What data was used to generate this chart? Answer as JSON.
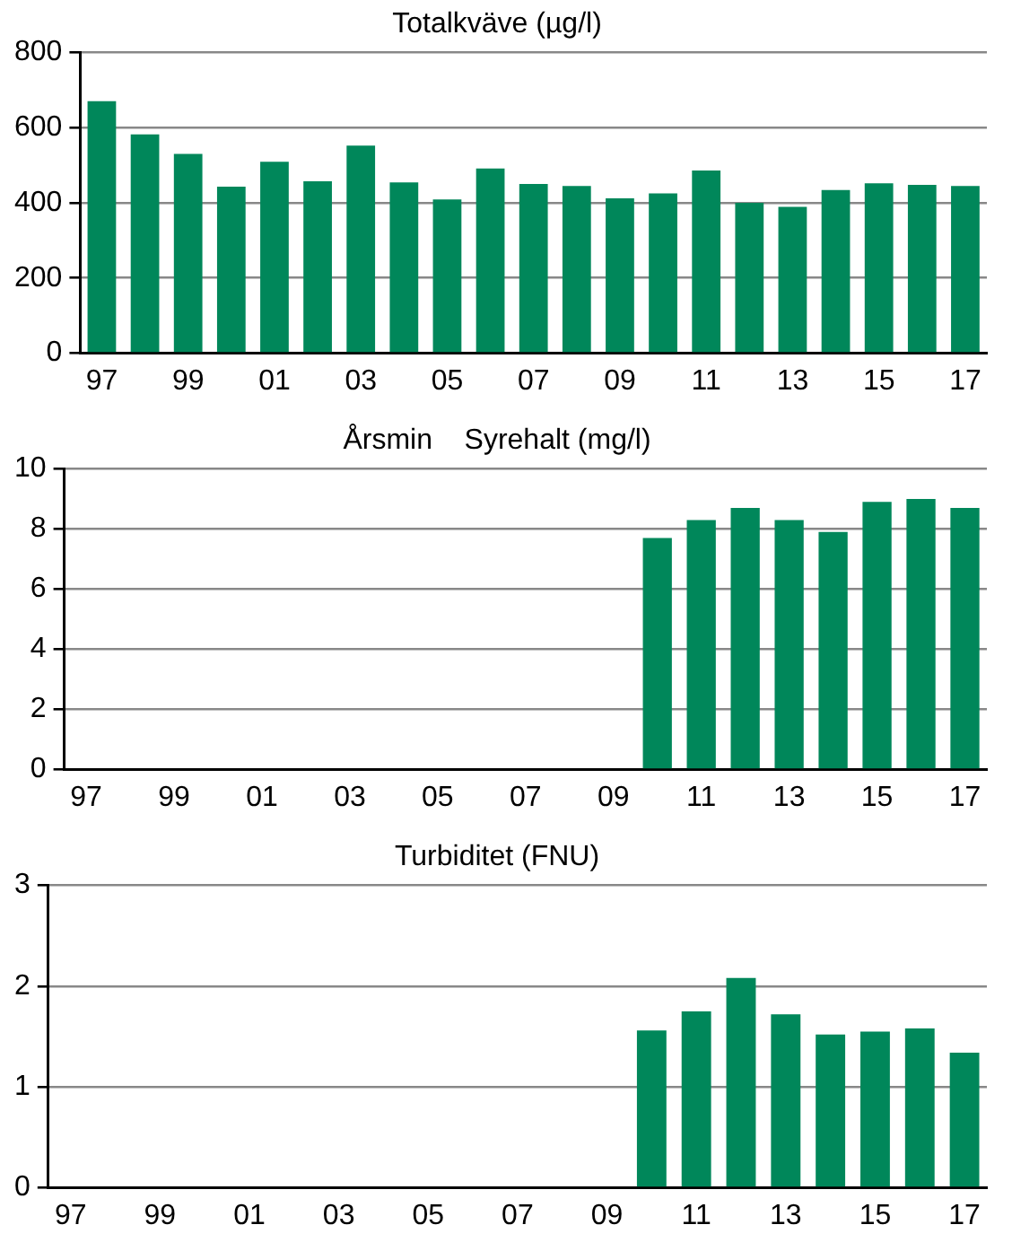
{
  "chart_data": [
    {
      "type": "bar",
      "title": "Totalkväve (µg/l)",
      "categories": [
        "97",
        null,
        "99",
        null,
        "01",
        null,
        "03",
        null,
        "05",
        null,
        "07",
        null,
        "09",
        null,
        "11",
        null,
        "13",
        null,
        "15",
        null,
        "17"
      ],
      "values": [
        670,
        582,
        530,
        443,
        509,
        457,
        552,
        454,
        409,
        491,
        450,
        445,
        412,
        425,
        486,
        400,
        389,
        434,
        452,
        448,
        445
      ],
      "color": "#00875a",
      "ylim": [
        0,
        800
      ],
      "yticks": [
        0,
        200,
        400,
        600,
        800
      ],
      "grid": "y",
      "legend": false
    },
    {
      "type": "bar",
      "title": "Årsmin    Syrehalt (mg/l)",
      "categories": [
        "97",
        null,
        "99",
        null,
        "01",
        null,
        "03",
        null,
        "05",
        null,
        "07",
        null,
        "09",
        null,
        "11",
        null,
        "13",
        null,
        "15",
        null,
        "17"
      ],
      "values": [
        null,
        null,
        null,
        null,
        null,
        null,
        null,
        null,
        null,
        null,
        null,
        null,
        null,
        7.7,
        8.3,
        8.7,
        8.3,
        7.9,
        8.9,
        9.0,
        8.7
      ],
      "color": "#00875a",
      "ylim": [
        0,
        10
      ],
      "yticks": [
        0,
        2,
        4,
        6,
        8,
        10
      ],
      "grid": "y",
      "legend": false
    },
    {
      "type": "bar",
      "title": "Turbiditet (FNU)",
      "categories": [
        "97",
        null,
        "99",
        null,
        "01",
        null,
        "03",
        null,
        "05",
        null,
        "07",
        null,
        "09",
        null,
        "11",
        null,
        "13",
        null,
        "15",
        null,
        "17"
      ],
      "values": [
        null,
        null,
        null,
        null,
        null,
        null,
        null,
        null,
        null,
        null,
        null,
        null,
        null,
        1.56,
        1.75,
        2.08,
        1.72,
        1.52,
        1.55,
        1.58,
        1.34
      ],
      "color": "#00875a",
      "ylim": [
        0,
        3
      ],
      "yticks": [
        0,
        1,
        2,
        3
      ],
      "grid": "y",
      "legend": false
    }
  ]
}
